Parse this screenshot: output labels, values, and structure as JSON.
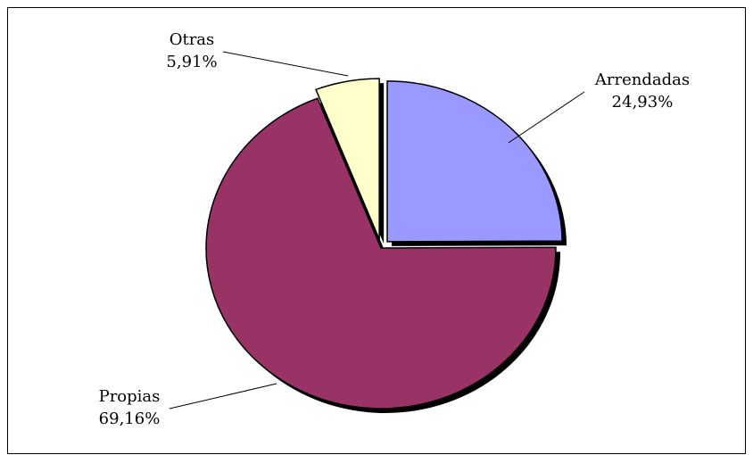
{
  "chart_data": {
    "type": "pie",
    "categories": [
      "Arrendadas",
      "Propias",
      "Otras"
    ],
    "values": [
      24.93,
      69.16,
      5.91
    ],
    "value_labels": [
      "24,93%",
      "69,16%",
      "5,91%"
    ],
    "colors": [
      "#9999ff",
      "#993366",
      "#ffffcc"
    ]
  }
}
